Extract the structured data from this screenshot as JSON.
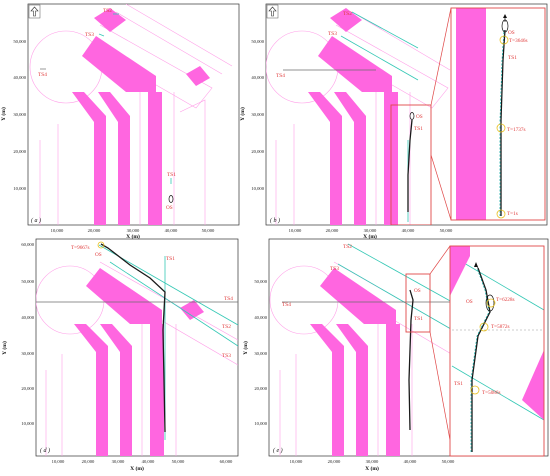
{
  "panels": {
    "a": {
      "label": "( a )",
      "xlabel": "X (m)",
      "ylabel": "Y (m)",
      "xticks": [
        "10,000",
        "20,000",
        "30,000",
        "40,000",
        "50,000"
      ],
      "yticks": [
        "10,000",
        "20,000",
        "30,000",
        "40,000",
        "50,000"
      ],
      "targets": [
        "TS2",
        "TS3",
        "TS4",
        "TS1"
      ],
      "own_ship": "OS"
    },
    "b": {
      "label": "( b )",
      "xlabel": "X (m)",
      "ylabel": "Y (m)",
      "xticks": [
        "10,000",
        "20,000",
        "30,000",
        "40,000",
        "50,000"
      ],
      "yticks": [
        "10,000",
        "20,000",
        "30,000",
        "40,000",
        "50,000"
      ],
      "targets": [
        "TS2",
        "TS3",
        "TS4",
        "TS1"
      ],
      "own_ship": "OS",
      "inset": {
        "own_ship": "OS",
        "target": "TS1",
        "times": [
          "T=3646s",
          "T=1737s",
          "T=1s"
        ]
      }
    },
    "d": {
      "label": "( d )",
      "xlabel": "X (m)",
      "ylabel": "Y (m)",
      "xticks": [
        "10,000",
        "20,000",
        "30,000",
        "40,000",
        "50,000",
        "60,000"
      ],
      "yticks": [
        "10,000",
        "20,000",
        "30,000",
        "40,000",
        "50,000",
        "60,000"
      ],
      "targets": [
        "TS1",
        "TS4",
        "TS2",
        "TS3"
      ],
      "own_ship": "OS",
      "time": "T=9667s"
    },
    "e": {
      "label": "( e )",
      "xlabel": "X (m)",
      "ylabel": "Y (m)",
      "xticks": [
        "10,000",
        "20,000",
        "30,000",
        "40,000",
        "50,000"
      ],
      "yticks": [
        "10,000",
        "20,000",
        "30,000",
        "40,000",
        "50,000"
      ],
      "targets": [
        "TS2",
        "TS3",
        "TS4",
        "TS1"
      ],
      "own_ship": "OS",
      "inset": {
        "own_ship": "OS",
        "target": "TS1",
        "times": [
          "T=6228s",
          "T=5872s",
          "T=5086s"
        ]
      }
    }
  },
  "colors": {
    "channel": "#ff66e0",
    "boundary": "#ff9fe8",
    "target_track": "#35c8b5",
    "own_track": "#1a1a1a",
    "label": "#e03a3a",
    "marker": "#e8c020",
    "zoom_box": "#e04848"
  }
}
